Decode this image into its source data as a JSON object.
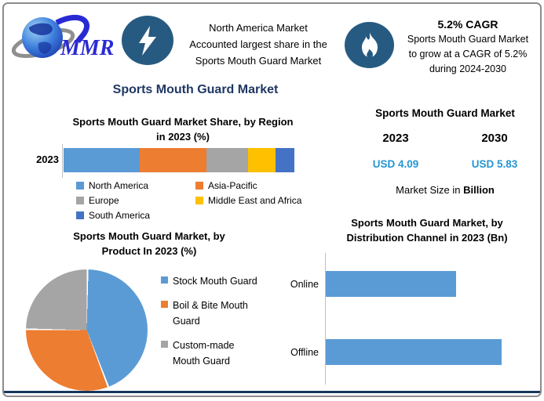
{
  "brand": {
    "logo_text": "MMR"
  },
  "icons": {
    "highlight": "lightning-bolt",
    "cagr": "flame"
  },
  "header": {
    "highlight": {
      "lines": [
        "North America Market",
        "Accounted largest share in the",
        "Sports Mouth Guard Market"
      ]
    },
    "cagr": {
      "headline": "5.2% CAGR",
      "lines": [
        "Sports Mouth Guard Market",
        "to grow at a CAGR of 5.2%",
        "during 2024-2030"
      ]
    }
  },
  "main_title": "Sports Mouth Guard Market",
  "market_size": {
    "title": "Sports Mouth Guard Market",
    "years": [
      "2023",
      "2030"
    ],
    "values": [
      "USD 4.09",
      "USD 5.83"
    ],
    "caption_prefix": "Market Size in ",
    "caption_bold": "Billion"
  },
  "colors": {
    "navy_title": "#1F3864",
    "icon_circle": "#275A81",
    "usd_blue": "#2596D1",
    "chart_blue": "#5B9BD5",
    "orange": "#ED7D31",
    "gray": "#A5A5A5",
    "yellow": "#FFC000",
    "dark_blue": "#4472C4",
    "bottom_bar": "#17375E"
  },
  "chart_data": [
    {
      "type": "bar",
      "subtype": "stacked-horizontal",
      "title": "Sports Mouth Guard Market Share, by Region in 2023 (%)",
      "title_lines": [
        "Sports Mouth Guard Market Share, by Region",
        "in 2023 (%)"
      ],
      "categories": [
        "2023"
      ],
      "series": [
        {
          "name": "North America",
          "values": [
            33
          ],
          "color": "#5B9BD5"
        },
        {
          "name": "Asia-Pacific",
          "values": [
            29
          ],
          "color": "#ED7D31"
        },
        {
          "name": "Europe",
          "values": [
            18
          ],
          "color": "#A5A5A5"
        },
        {
          "name": "Middle East and Africa",
          "values": [
            12
          ],
          "color": "#FFC000"
        },
        {
          "name": "South America",
          "values": [
            8
          ],
          "color": "#4472C4"
        }
      ],
      "ylabel": "2023",
      "legend_position": "bottom",
      "grid": false
    },
    {
      "type": "pie",
      "title": "Sports Mouth Guard Market, by Product In 2023 (%)",
      "title_lines": [
        "Sports Mouth Guard Market, by",
        "Product In 2023 (%)"
      ],
      "labels": [
        "Stock Mouth Guard",
        "Boil & Bite Mouth Guard",
        "Custom-made Mouth Guard"
      ],
      "values": [
        44,
        31,
        25
      ],
      "colors": [
        "#5B9BD5",
        "#ED7D31",
        "#A5A5A5"
      ],
      "legend_position": "right"
    },
    {
      "type": "bar",
      "subtype": "horizontal",
      "title": "Sports Mouth Guard Market, by Distribution Channel in 2023 (Bn)",
      "title_lines": [
        "Sports Mouth Guard Market, by",
        "Distribution Channel in 2023 (Bn)"
      ],
      "categories": [
        "Online",
        "Offline"
      ],
      "values": [
        1.7,
        2.3
      ],
      "color": "#5B9BD5",
      "xlim": [
        0,
        2.4
      ],
      "grid": false
    }
  ]
}
